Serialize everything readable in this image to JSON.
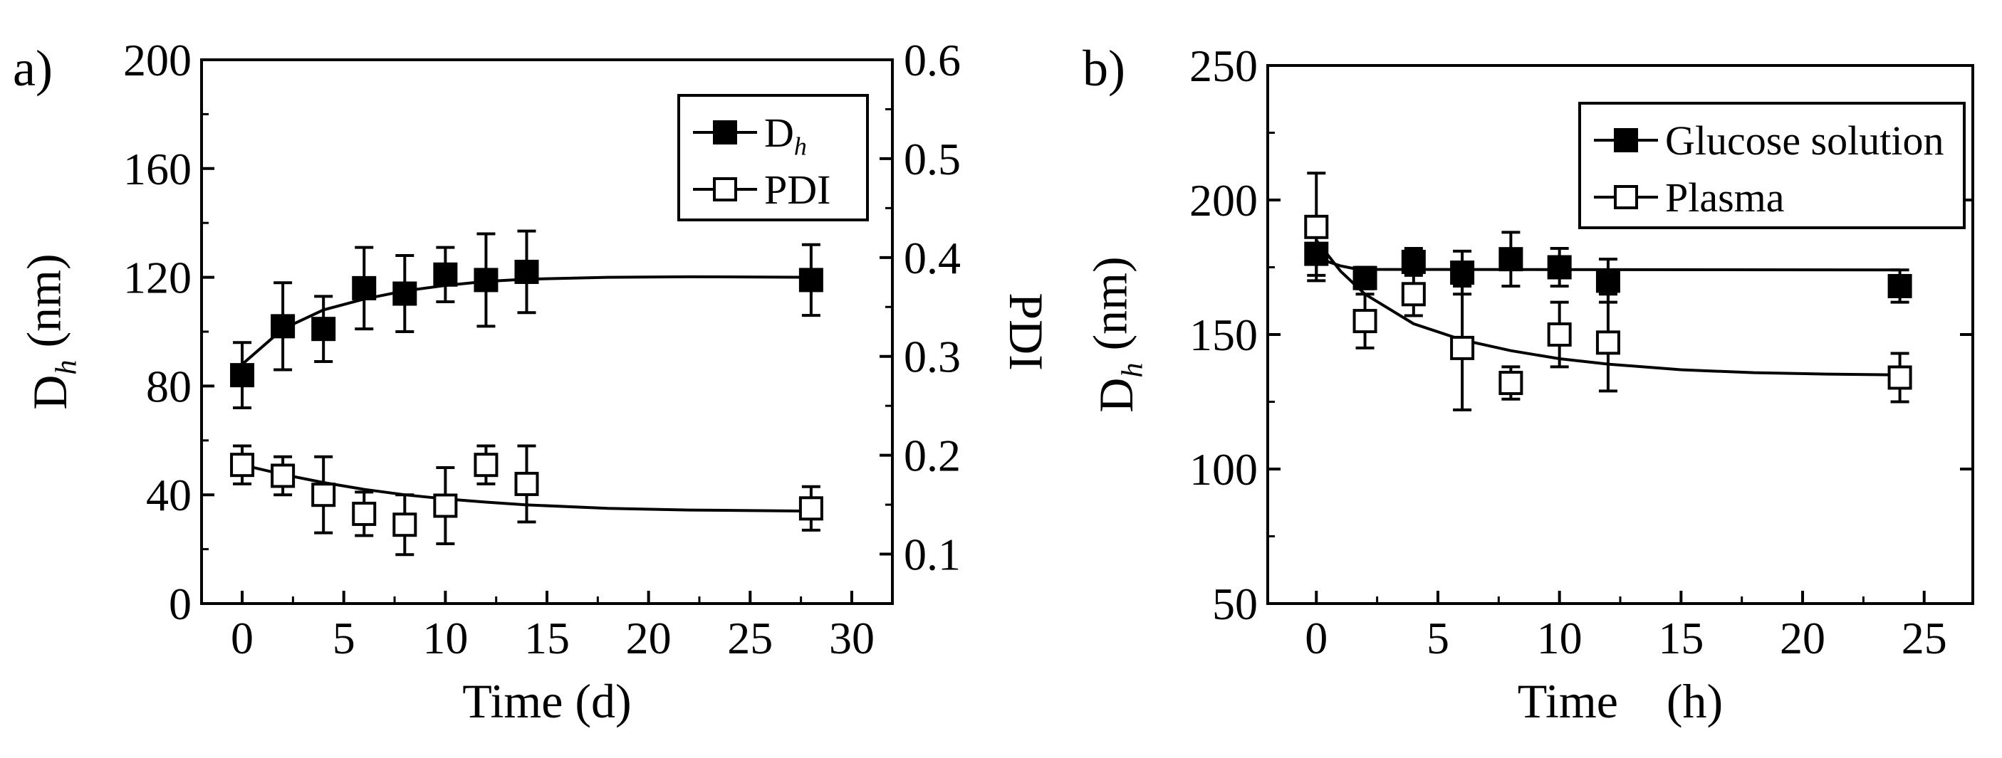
{
  "panels": [
    {
      "id": "a",
      "label": "a)"
    },
    {
      "id": "b",
      "label": "b)"
    }
  ],
  "chart_data": [
    {
      "type": "scatter",
      "panel": "a)",
      "xlabel": "Time (d)",
      "ylabel": "D_h (nm)",
      "y2label": "PDI",
      "xlim": [
        -2,
        32
      ],
      "ylim": [
        0,
        200
      ],
      "y2lim": [
        0.05,
        0.6
      ],
      "xticks": [
        0,
        5,
        10,
        15,
        20,
        25,
        30
      ],
      "yticks": [
        0,
        40,
        80,
        120,
        160,
        200
      ],
      "y2ticks": [
        0.1,
        0.2,
        0.3,
        0.4,
        0.5,
        0.6
      ],
      "legend_position": "top-right",
      "series": [
        {
          "name": "D_h",
          "axis": "left",
          "marker": "filled-square",
          "x": [
            0,
            2,
            4,
            6,
            8,
            10,
            12,
            14,
            28
          ],
          "y": [
            84,
            102,
            101,
            116,
            114,
            121,
            119,
            122,
            119
          ],
          "err": [
            12,
            16,
            12,
            15,
            14,
            10,
            17,
            15,
            13
          ],
          "fit": {
            "x": [
              0,
              2,
              4,
              6,
              8,
              10,
              12,
              14,
              18,
              22,
              28
            ],
            "y": [
              88,
              101,
              108,
              112,
              115,
              117,
              118.5,
              119.3,
              120,
              120.2,
              120
            ]
          }
        },
        {
          "name": "PDI",
          "axis": "left",
          "marker": "open-square",
          "x": [
            0,
            2,
            4,
            6,
            8,
            10,
            12,
            14,
            28
          ],
          "y": [
            51,
            47,
            40,
            33,
            29,
            36,
            51,
            44,
            35
          ],
          "err": [
            7,
            7,
            14,
            8,
            11,
            14,
            7,
            14,
            8
          ],
          "fit": {
            "x": [
              0,
              2,
              4,
              6,
              8,
              10,
              12,
              14,
              18,
              22,
              28
            ],
            "y": [
              51,
              47.5,
              44.5,
              42,
              40,
              38.5,
              37.3,
              36.3,
              35,
              34.4,
              34
            ]
          }
        }
      ]
    },
    {
      "type": "scatter",
      "panel": "b)",
      "xlabel": "Time　(h)",
      "ylabel": "D_h (nm)",
      "xlim": [
        -2,
        27
      ],
      "ylim": [
        50,
        250
      ],
      "xticks": [
        0,
        5,
        10,
        15,
        20,
        25
      ],
      "yticks": [
        50,
        100,
        150,
        200,
        250
      ],
      "legend_position": "top-right",
      "series": [
        {
          "name": "Glucose solution",
          "marker": "filled-square",
          "x": [
            0,
            2,
            4,
            6,
            8,
            10,
            12,
            24
          ],
          "y": [
            180,
            171,
            177,
            173,
            178,
            175,
            170,
            168
          ],
          "err": [
            8,
            4,
            5,
            8,
            10,
            7,
            8,
            6
          ],
          "fit": {
            "x": [
              0,
              0.5,
              1,
              1.5,
              2,
              24
            ],
            "y": [
              180,
              177,
              175.5,
              174.6,
              174.2,
              174
            ]
          }
        },
        {
          "name": "Plasma",
          "marker": "open-square",
          "x": [
            0,
            2,
            4,
            6,
            8,
            10,
            12,
            24
          ],
          "y": [
            190,
            155,
            165,
            145,
            132,
            150,
            147,
            134
          ],
          "err": [
            20,
            10,
            8,
            23,
            6,
            12,
            18,
            9
          ],
          "fit": {
            "x": [
              0,
              1,
              2,
              4,
              6,
              8,
              10,
              12,
              15,
              18,
              21,
              24
            ],
            "y": [
              185,
              173.5,
              165,
              154,
              148,
              144,
              141,
              139,
              136.9,
              135.8,
              135.3,
              135
            ]
          }
        }
      ]
    }
  ]
}
